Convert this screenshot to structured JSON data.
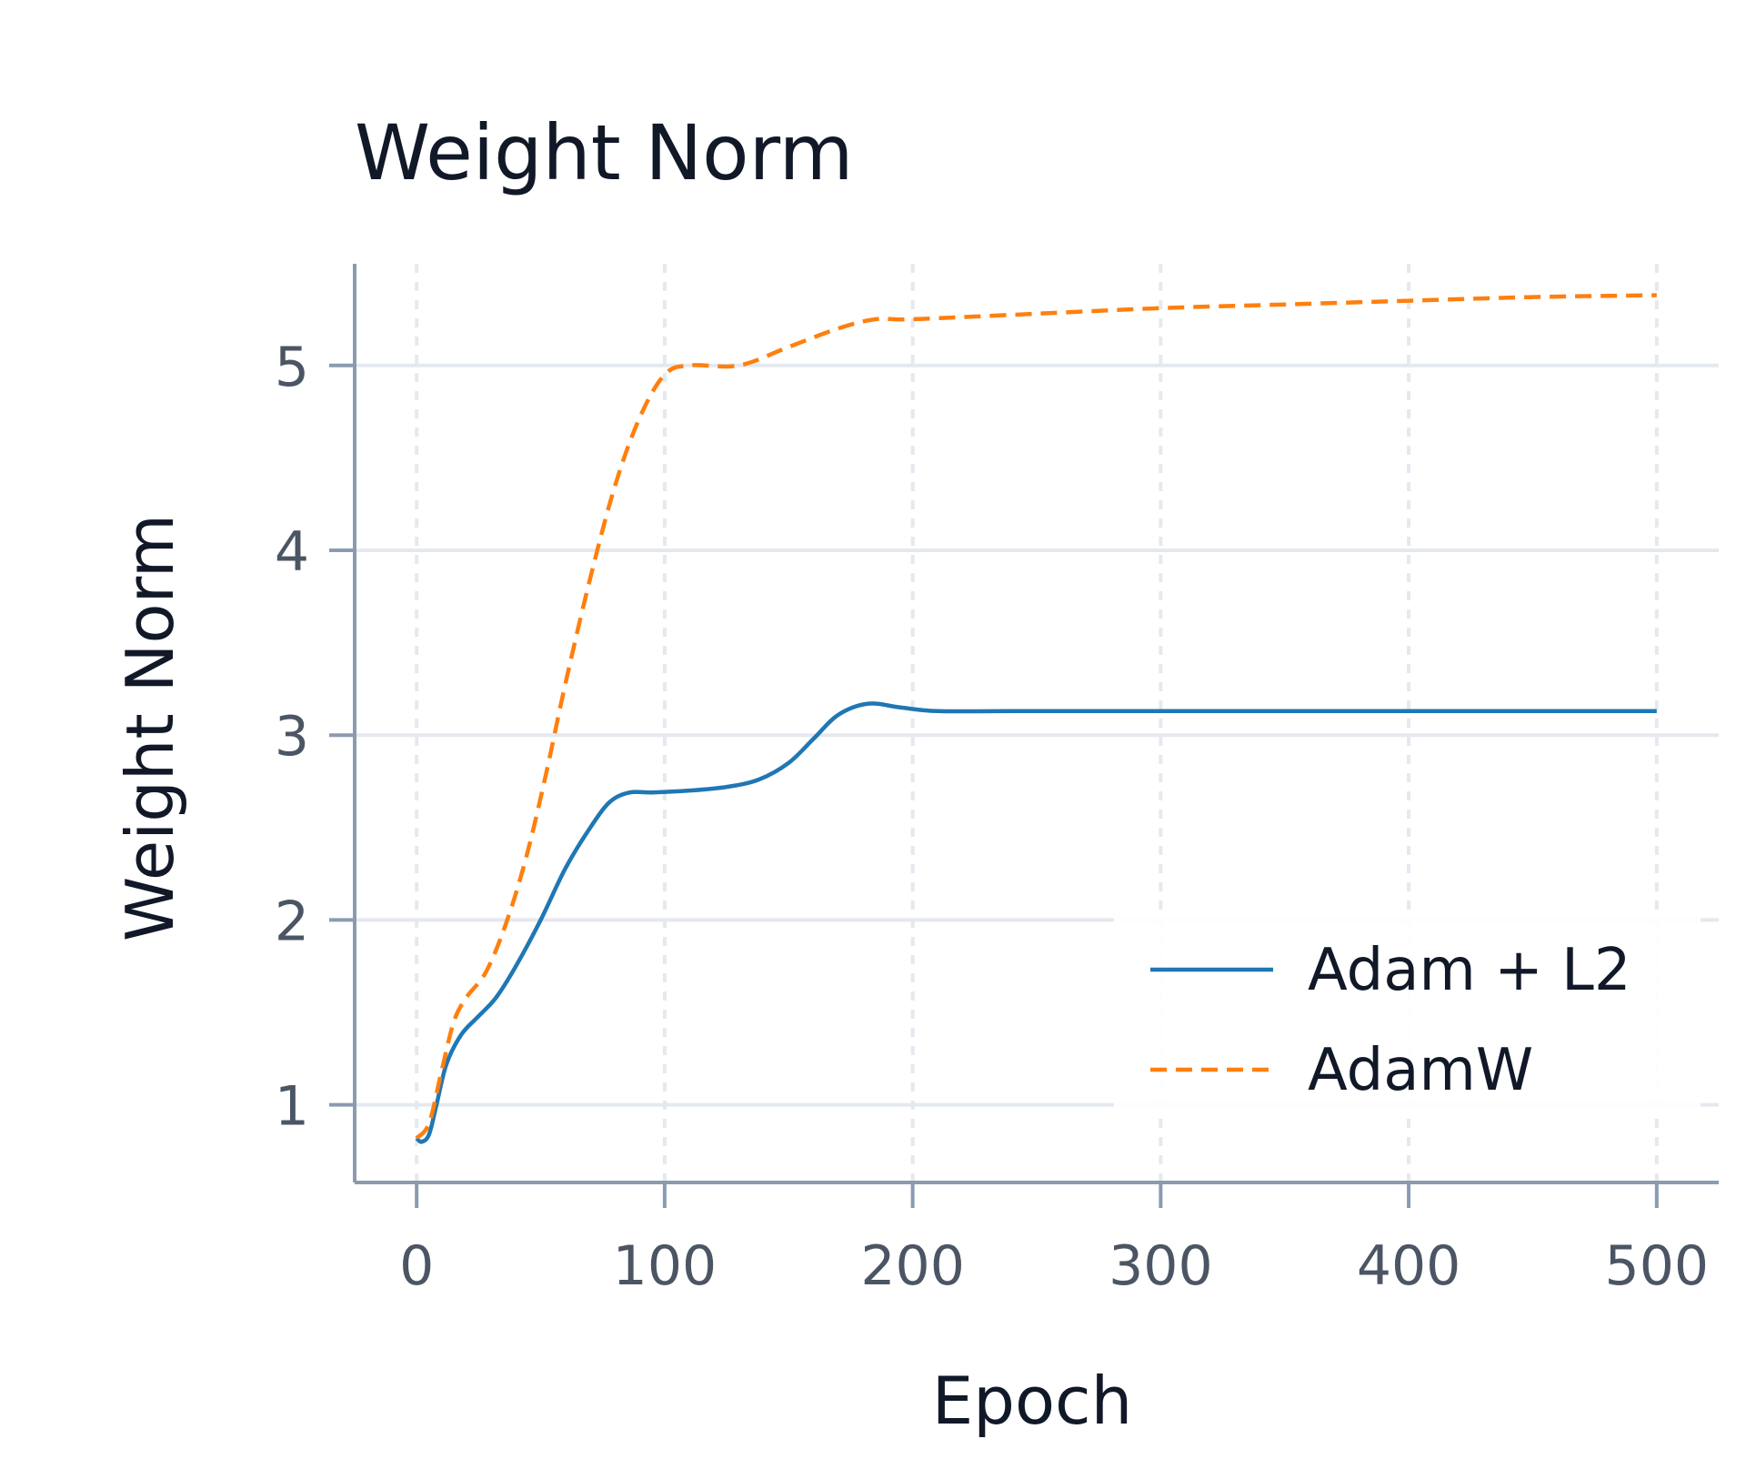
{
  "chart_data": {
    "type": "line",
    "title": "Weight Norm",
    "xlabel": "Epoch",
    "ylabel": "Weight Norm",
    "xlim": [
      -25,
      525
    ],
    "ylim": [
      0.58,
      5.55
    ],
    "xticks": [
      0,
      100,
      200,
      300,
      400,
      500
    ],
    "yticks": [
      1,
      2,
      3,
      4,
      5
    ],
    "grid": true,
    "legend_position": "lower-right",
    "series": [
      {
        "name": "Adam + L2",
        "color": "#1f77b4",
        "dash": "solid",
        "points": [
          [
            0,
            0.82
          ],
          [
            2,
            0.8
          ],
          [
            5,
            0.84
          ],
          [
            8,
            1.0
          ],
          [
            12,
            1.22
          ],
          [
            18,
            1.38
          ],
          [
            25,
            1.48
          ],
          [
            32,
            1.58
          ],
          [
            40,
            1.75
          ],
          [
            50,
            2.0
          ],
          [
            60,
            2.28
          ],
          [
            70,
            2.5
          ],
          [
            78,
            2.64
          ],
          [
            86,
            2.69
          ],
          [
            95,
            2.69
          ],
          [
            110,
            2.7
          ],
          [
            125,
            2.72
          ],
          [
            138,
            2.76
          ],
          [
            150,
            2.85
          ],
          [
            160,
            2.98
          ],
          [
            170,
            3.11
          ],
          [
            182,
            3.17
          ],
          [
            195,
            3.15
          ],
          [
            210,
            3.13
          ],
          [
            240,
            3.13
          ],
          [
            300,
            3.13
          ],
          [
            400,
            3.13
          ],
          [
            500,
            3.13
          ]
        ]
      },
      {
        "name": "AdamW",
        "color": "#ff7f0e",
        "dash": "dashed",
        "points": [
          [
            0,
            0.82
          ],
          [
            5,
            0.9
          ],
          [
            10,
            1.18
          ],
          [
            15,
            1.45
          ],
          [
            20,
            1.58
          ],
          [
            28,
            1.72
          ],
          [
            36,
            1.98
          ],
          [
            44,
            2.33
          ],
          [
            52,
            2.78
          ],
          [
            60,
            3.28
          ],
          [
            70,
            3.85
          ],
          [
            80,
            4.35
          ],
          [
            90,
            4.72
          ],
          [
            100,
            4.95
          ],
          [
            110,
            5.0
          ],
          [
            130,
            5.0
          ],
          [
            150,
            5.1
          ],
          [
            170,
            5.2
          ],
          [
            185,
            5.25
          ],
          [
            200,
            5.25
          ],
          [
            250,
            5.28
          ],
          [
            300,
            5.31
          ],
          [
            350,
            5.33
          ],
          [
            400,
            5.35
          ],
          [
            450,
            5.37
          ],
          [
            500,
            5.38
          ]
        ]
      }
    ]
  },
  "colors": {
    "axis": "#8a9bb0",
    "grid": "#e5e9ef",
    "tick_text": "#4b5563",
    "text": "#111827",
    "background": "#ffffff"
  }
}
